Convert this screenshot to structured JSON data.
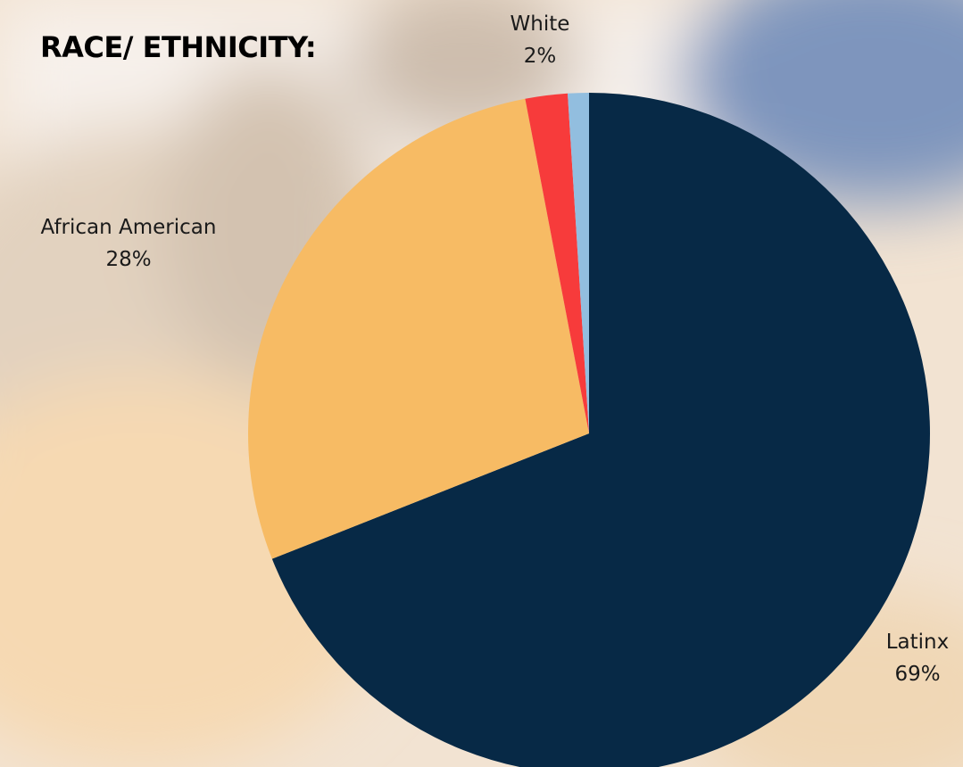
{
  "colors": {
    "Latinx": "#072946",
    "African American": "#F7BB64",
    "White": "#F73B3B",
    "Other": "#92BEDF"
  },
  "chart_data": {
    "type": "pie",
    "title": "RACE/ ETHNICITY:",
    "slices": [
      {
        "label": "Latinx",
        "value": 69,
        "display": "69%",
        "color": "#072946",
        "show_label": true
      },
      {
        "label": "African American",
        "value": 28,
        "display": "28%",
        "color": "#F7BB64",
        "show_label": true
      },
      {
        "label": "White",
        "value": 2,
        "display": "2%",
        "color": "#F73B3B",
        "show_label": true
      },
      {
        "label": "",
        "value": 1,
        "display": "",
        "color": "#92BEDF",
        "show_label": false
      }
    ],
    "start": "12 o'clock",
    "direction": "clockwise",
    "legend": "none"
  }
}
